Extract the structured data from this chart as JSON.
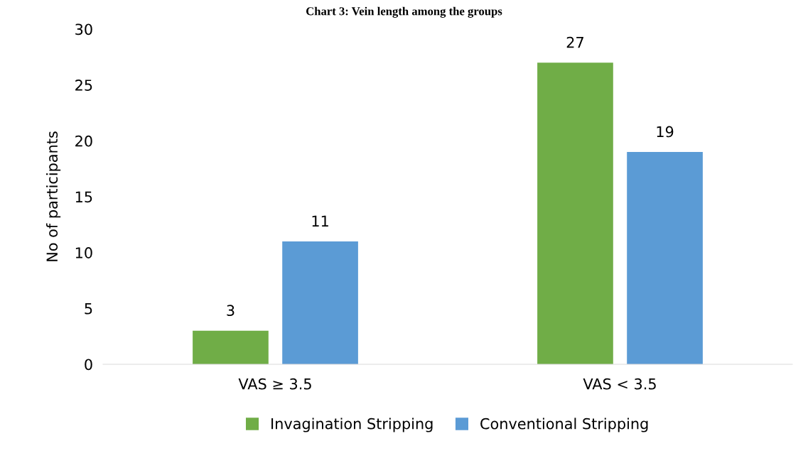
{
  "chart_data": {
    "type": "bar",
    "title": "Chart 3: Vein length among the groups",
    "ylabel": "No of participants",
    "categories": [
      "VAS ≥ 3.5",
      "VAS < 3.5"
    ],
    "series": [
      {
        "name": "Invagination Stripping",
        "color": "#70ad47",
        "values": [
          3,
          27
        ]
      },
      {
        "name": "Conventional Stripping",
        "color": "#5b9bd5",
        "values": [
          11,
          19
        ]
      }
    ],
    "ylim": [
      0,
      30
    ],
    "yticks": [
      0,
      5,
      10,
      15,
      20,
      25,
      30
    ],
    "data_labels": true,
    "grid": false,
    "legend": "bottom"
  }
}
